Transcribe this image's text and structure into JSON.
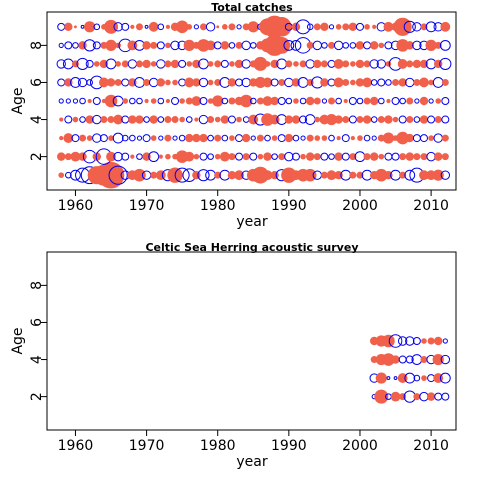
{
  "chart_data": [
    {
      "type": "scatter",
      "subtype": "bubble-residual",
      "title": "Total catches",
      "xlabel": "year",
      "ylabel": "Age",
      "xlim": [
        1956,
        2013.5
      ],
      "ylim": [
        0.2,
        9.8
      ],
      "x_ticks": [
        1960,
        1970,
        1980,
        1990,
        2000,
        2010
      ],
      "y_ticks": [
        2,
        4,
        6,
        8
      ],
      "ages": [
        1,
        2,
        3,
        4,
        5,
        6,
        7,
        8,
        9
      ],
      "years": [
        1958,
        2012
      ],
      "colors": {
        "positive": "#f0604a",
        "negative": "#0000ee"
      },
      "residuals": {
        "9": [
          -0.5,
          0.6,
          0.2,
          -0.2,
          0.8,
          -0.4,
          0.4,
          1.0,
          -0.6,
          -0.5,
          0.3,
          0.5,
          -0.2,
          0.7,
          -0.4,
          0.3,
          0.6,
          0.9,
          0.4,
          -0.3,
          0.5,
          -0.6,
          0.2,
          0.4,
          0.5,
          -0.3,
          0.5,
          0.8,
          -0.4,
          1.2,
          1.6,
          1.4,
          -0.5,
          0.6,
          -1.0,
          -0.4,
          0.5,
          0.6,
          -0.3,
          0.4,
          0.5,
          0.6,
          -0.5,
          0.4,
          0.3,
          -0.6,
          0.7,
          0.6,
          1.3,
          -0.8,
          -0.6,
          0.5,
          -0.7,
          -0.6,
          0.7
        ],
        "8": [
          -0.3,
          -0.5,
          -0.4,
          0.6,
          -0.8,
          -0.5,
          0.5,
          0.8,
          0.4,
          -0.9,
          0.7,
          -0.7,
          0.6,
          0.5,
          -0.5,
          0.4,
          -0.6,
          -0.6,
          0.8,
          0.5,
          0.9,
          0.7,
          -0.5,
          0.6,
          -0.4,
          0.5,
          -0.6,
          -0.4,
          0.6,
          1.0,
          1.5,
          1.2,
          -0.7,
          -0.7,
          -1.1,
          0.5,
          -0.6,
          -0.4,
          0.5,
          -0.6,
          -0.4,
          -0.4,
          0.6,
          -0.5,
          0.6,
          0.4,
          -0.5,
          -0.6,
          0.9,
          0.6,
          -0.6,
          -0.6,
          0.8,
          0.5,
          -0.7
        ],
        "7": [
          -0.6,
          -0.7,
          0.5,
          -0.8,
          -0.5,
          0.4,
          0.6,
          -0.7,
          0.4,
          0.5,
          -0.6,
          0.5,
          0.6,
          0.4,
          -0.6,
          0.5,
          0.6,
          -0.5,
          0.4,
          0.6,
          -0.7,
          0.4,
          0.5,
          -0.5,
          0.4,
          0.6,
          -0.6,
          0.5,
          1.0,
          0.4,
          0.6,
          -0.7,
          0.5,
          0.4,
          0.5,
          -0.6,
          0.6,
          0.5,
          -0.5,
          0.7,
          0.5,
          0.4,
          0.6,
          0.5,
          -0.6,
          -0.6,
          0.4,
          -0.9,
          0.7,
          0.5,
          0.6,
          0.6,
          -0.7,
          0.6,
          -0.8
        ],
        "6": [
          -0.5,
          0.6,
          -0.7,
          -0.6,
          -0.4,
          -0.9,
          0.7,
          0.6,
          0.5,
          -0.5,
          0.6,
          -0.7,
          0.5,
          -0.6,
          0.6,
          0.4,
          0.4,
          -0.5,
          0.7,
          0.6,
          -0.6,
          0.4,
          0.5,
          -0.7,
          0.6,
          -0.5,
          -0.6,
          0.6,
          0.8,
          0.7,
          -0.5,
          0.5,
          -0.6,
          0.6,
          -0.7,
          0.5,
          -0.8,
          0.6,
          -0.5,
          0.7,
          0.5,
          0.4,
          0.6,
          0.7,
          -0.4,
          -0.5,
          -0.4,
          0.5,
          0.6,
          -0.6,
          0.5,
          0.7,
          0.4,
          -0.7,
          0.5
        ],
        "5": [
          -0.3,
          -0.3,
          -0.3,
          -0.4,
          0.3,
          -0.5,
          0.3,
          0.9,
          -0.7,
          0.4,
          -0.4,
          -0.4,
          0.3,
          0.4,
          -0.4,
          0.3,
          -0.5,
          0.4,
          0.5,
          0.7,
          -0.5,
          0.4,
          0.8,
          -0.4,
          0.5,
          0.6,
          0.9,
          -0.4,
          0.5,
          0.7,
          0.6,
          -0.5,
          -0.4,
          0.4,
          -0.4,
          0.6,
          0.5,
          -0.3,
          0.5,
          -0.4,
          0.3,
          -0.5,
          -0.4,
          0.5,
          0.6,
          -0.4,
          0.3,
          -0.5,
          -0.4,
          0.5,
          -0.3,
          0.6,
          -0.3,
          0.4,
          -0.5
        ],
        "4": [
          0.3,
          -0.5,
          0.4,
          -0.4,
          0.6,
          -0.6,
          0.5,
          0.5,
          0.7,
          -0.5,
          0.6,
          0.6,
          -0.4,
          0.6,
          -0.4,
          0.5,
          0.5,
          0.4,
          -0.4,
          0.3,
          -0.6,
          0.5,
          0.4,
          0.6,
          -0.5,
          0.4,
          -0.4,
          0.7,
          -0.8,
          0.9,
          0.7,
          -0.7,
          0.6,
          0.6,
          -0.5,
          -0.7,
          0.4,
          0.7,
          0.8,
          0.6,
          0.5,
          -0.5,
          0.5,
          0.6,
          -0.4,
          0.5,
          0.6,
          0.4,
          -0.5,
          0.5,
          -0.4,
          0.6,
          -0.5,
          0.5,
          -0.5
        ],
        "3": [
          0.3,
          0.7,
          -0.5,
          0.5,
          0.4,
          -0.6,
          -0.5,
          0.4,
          -0.7,
          -0.4,
          -0.4,
          -0.3,
          -0.5,
          0.4,
          -0.3,
          0.5,
          -0.3,
          -0.4,
          0.6,
          0.6,
          0.6,
          -0.4,
          0.5,
          -0.4,
          0.4,
          -0.5,
          0.6,
          -0.3,
          0.5,
          -0.4,
          0.4,
          -0.5,
          0.6,
          -0.4,
          -0.3,
          0.5,
          0.4,
          0.4,
          -0.4,
          0.3,
          -0.5,
          0.3,
          0.4,
          -0.4,
          -0.3,
          0.5,
          0.8,
          0.4,
          0.9,
          0.6,
          -0.5,
          -0.5,
          0.4,
          -0.6,
          0.5
        ],
        "2": [
          0.6,
          0.5,
          0.7,
          0.6,
          -0.9,
          0.6,
          -1.1,
          0.7,
          -0.6,
          -0.5,
          0.3,
          -0.4,
          0.6,
          -0.7,
          0.3,
          0.4,
          0.4,
          0.9,
          0.7,
          0.4,
          -0.5,
          -0.4,
          0.4,
          0.7,
          0.5,
          -0.5,
          0.5,
          -0.5,
          0.4,
          0.6,
          -0.4,
          0.5,
          -0.6,
          -0.5,
          0.4,
          0.6,
          0.5,
          -0.5,
          -0.4,
          0.6,
          -0.5,
          0.5,
          -0.7,
          0.5,
          0.6,
          0.4,
          -0.5,
          -0.5,
          0.5,
          0.6,
          0.5,
          0.5,
          -0.6,
          0.6,
          0.5
        ],
        "1": [
          0.4,
          -0.4,
          -0.7,
          -1.0,
          -1.2,
          1.3,
          1.5,
          1.9,
          -1.3,
          -0.6,
          0.7,
          0.9,
          -0.6,
          0.5,
          0.7,
          -0.8,
          1.1,
          -1.0,
          -0.9,
          0.6,
          -0.8,
          -0.7,
          0.5,
          -0.7,
          0.6,
          0.7,
          -0.6,
          0.9,
          1.2,
          0.7,
          0.6,
          -0.8,
          1.1,
          0.7,
          0.9,
          0.9,
          -0.6,
          0.5,
          0.7,
          0.6,
          -0.7,
          0.5,
          0.5,
          -0.7,
          0.6,
          0.9,
          0.6,
          -0.7,
          0.5,
          -0.7,
          -1.0,
          0.7,
          0.7,
          0.8,
          -0.6
        ]
      }
    },
    {
      "type": "scatter",
      "subtype": "bubble-residual",
      "title": "Celtic Sea Herring acoustic survey",
      "xlabel": "year",
      "ylabel": "Age",
      "xlim": [
        1956,
        2013.5
      ],
      "ylim": [
        0.2,
        9.8
      ],
      "x_ticks": [
        1960,
        1970,
        1980,
        1990,
        2000,
        2010
      ],
      "y_ticks": [
        2,
        4,
        6,
        8
      ],
      "ages": [
        2,
        3,
        4,
        5
      ],
      "years": [
        2002,
        2012
      ],
      "colors": {
        "positive": "#f0604a",
        "negative": "#0000ee"
      },
      "residuals": {
        "5": [
          0.6,
          0.8,
          0.9,
          -0.9,
          -0.6,
          -0.6,
          -0.5,
          0.4,
          0.5,
          0.6,
          -0.3
        ],
        "4": [
          0.5,
          0.8,
          0.9,
          0.6,
          -0.5,
          -0.5,
          -0.7,
          0.5,
          -0.6,
          0.8,
          -0.6
        ],
        "3": [
          -0.6,
          0.8,
          -0.2,
          -0.2,
          0.7,
          -0.7,
          -0.4,
          0.4,
          -0.5,
          0.7,
          -0.7
        ],
        "2": [
          -0.3,
          1.0,
          -0.4,
          0.7,
          0.5,
          -0.8,
          0.5,
          -0.6,
          0.6,
          -0.5,
          -0.5
        ]
      }
    }
  ]
}
